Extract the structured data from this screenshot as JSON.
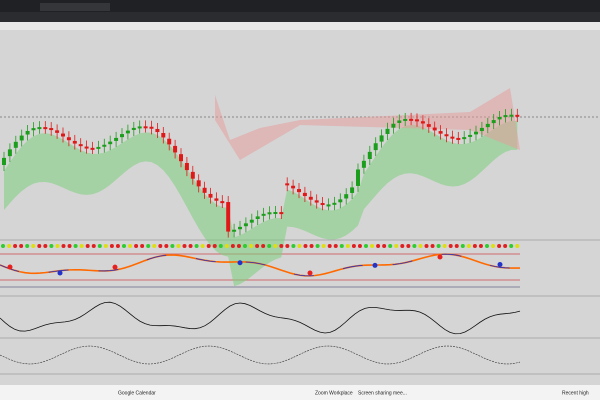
{
  "taskbar": {
    "items": [
      "Google Calendar",
      "Zoom Workplace",
      "Screen sharing mee...",
      "Recent high"
    ]
  }
}
